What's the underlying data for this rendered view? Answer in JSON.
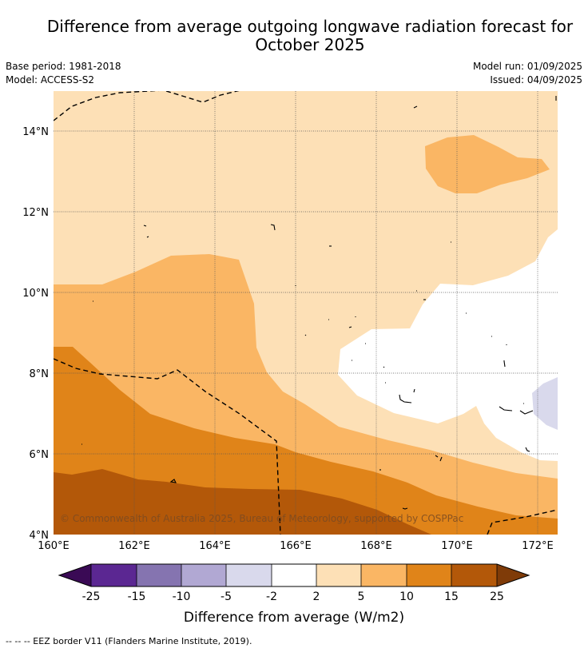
{
  "header": {
    "title_line1": "Difference from average outgoing longwave radiation forecast for",
    "title_line2": "October 2025",
    "base_period": "Base period: 1981-2018",
    "model": "Model: ACCESS-S2",
    "model_run": "Model run: 01/09/2025",
    "issued": "Issued: 04/09/2025"
  },
  "map": {
    "lon_labels": [
      "160°E",
      "162°E",
      "164°E",
      "166°E",
      "168°E",
      "170°E",
      "172°E"
    ],
    "lat_labels": [
      "14°N",
      "12°N",
      "10°N",
      "8°N",
      "6°N",
      "4°N"
    ],
    "copyright": "© Commonwealth of Australia 2025, Bureau of Meteorology, supported by COSPPac"
  },
  "colorbar": {
    "ticks": [
      "-25",
      "-15",
      "-10",
      "-5",
      "-2",
      "2",
      "5",
      "10",
      "15",
      "25"
    ],
    "title": "Difference from average (W/m2)",
    "colors": {
      "lt_neg25": "#3a0a55",
      "neg25_neg15": "#5b2792",
      "neg15_neg10": "#8574b0",
      "neg10_neg5": "#b1a8d3",
      "neg5_neg2": "#d9d9ec",
      "neg2_2": "#ffffff",
      "c2_5": "#fde0b6",
      "c5_10": "#fab664",
      "c10_15": "#e08419",
      "c15_25": "#b35809",
      "gt25": "#7f3b08"
    }
  },
  "footnote": "--  --  -- EEZ border V11 (Flanders Marine Institute, 2019)."
}
